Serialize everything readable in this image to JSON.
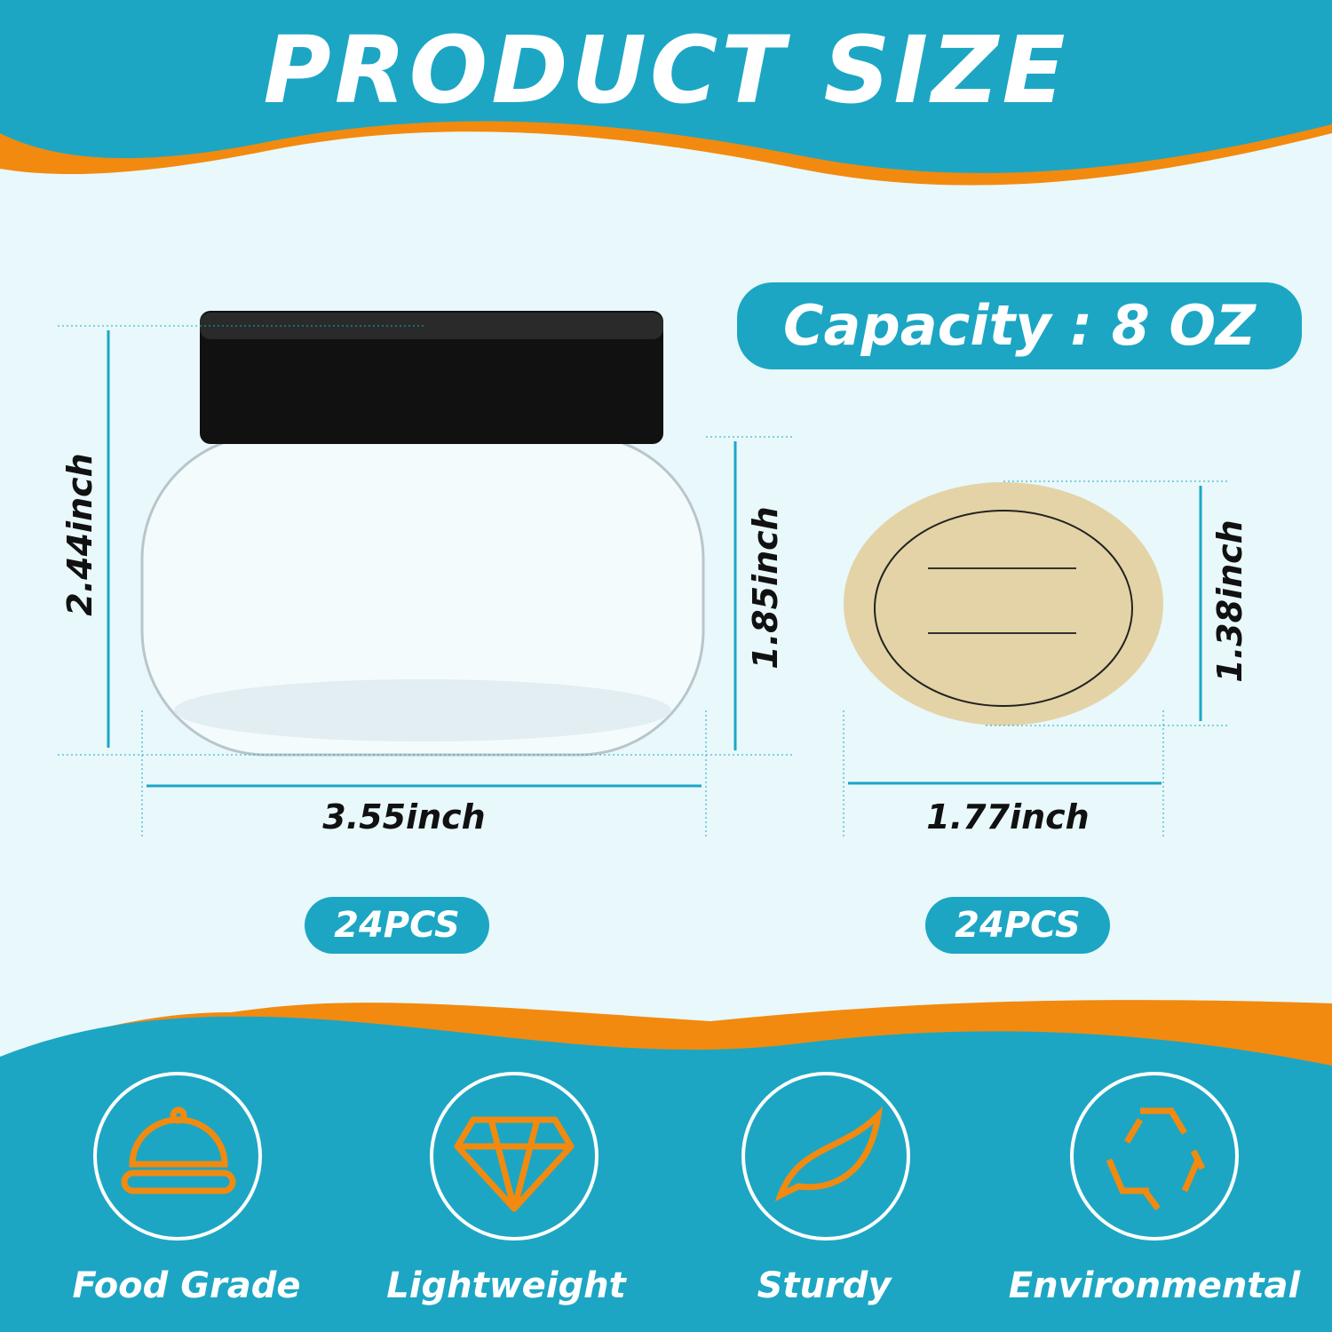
{
  "header": {
    "title": "PRODUCT SIZE"
  },
  "colors": {
    "teal": "#1ca6c4",
    "orange": "#f28a0f",
    "background": "#e8f8fb"
  },
  "capacity": "Capacity : 8 OZ",
  "jar": {
    "height": "2.44inch",
    "body_height": "1.85inch",
    "width": "3.55inch",
    "quantity": "24PCS"
  },
  "label": {
    "height": "1.38inch",
    "width": "1.77inch",
    "quantity": "24PCS"
  },
  "features": [
    {
      "label": "Food Grade",
      "icon": "food-cloche-icon"
    },
    {
      "label": "Lightweight",
      "icon": "diamond-icon"
    },
    {
      "label": "Sturdy",
      "icon": "leaf-icon"
    },
    {
      "label": "Environmental",
      "icon": "recycle-icon"
    }
  ]
}
